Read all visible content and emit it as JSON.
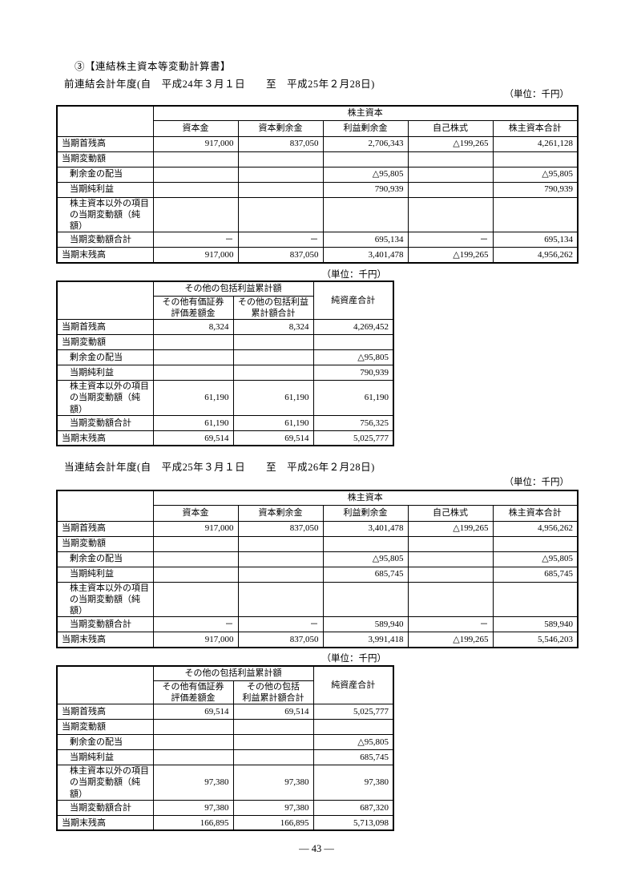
{
  "page_title": "③【連結株主資本等変動計算書】",
  "unit_label": "（単位：千円）",
  "page_number": "― 43 ―",
  "sections": [
    {
      "period_label": "前連結会計年度(自　平成24年３月１日　　至　平成25年２月28日)",
      "tables": [
        {
          "type": "shareholders_equity",
          "group_header": "株主資本",
          "columns": [
            "資本金",
            "資本剰余金",
            "利益剰余金",
            "自己株式",
            "株主資本合計"
          ],
          "rows": [
            {
              "label": "当期首残高",
              "indent": false,
              "tall": false,
              "values": [
                "917,000",
                "837,050",
                "2,706,343",
                "△199,265",
                "4,261,128"
              ]
            },
            {
              "label": "当期変動額",
              "indent": false,
              "tall": false,
              "values": [
                "",
                "",
                "",
                "",
                ""
              ]
            },
            {
              "label": "剰余金の配当",
              "indent": true,
              "tall": false,
              "values": [
                "",
                "",
                "△95,805",
                "",
                "△95,805"
              ]
            },
            {
              "label": "当期純利益",
              "indent": true,
              "tall": false,
              "values": [
                "",
                "",
                "790,939",
                "",
                "790,939"
              ]
            },
            {
              "label": "株主資本以外の項目\nの当期変動額（純額）",
              "indent": true,
              "tall": true,
              "values": [
                "",
                "",
                "",
                "",
                ""
              ]
            },
            {
              "label": "当期変動額合計",
              "indent": true,
              "tall": false,
              "values": [
                "－",
                "－",
                "695,134",
                "－",
                "695,134"
              ]
            },
            {
              "label": "当期末残高",
              "indent": false,
              "tall": false,
              "values": [
                "917,000",
                "837,050",
                "3,401,478",
                "△199,265",
                "4,956,262"
              ]
            }
          ]
        },
        {
          "type": "comprehensive_income",
          "group_header": "その他の包括利益累計額",
          "columns": [
            "その他有価証券\n評価差額金",
            "その他の包括利益\n累計額合計"
          ],
          "last_column": "純資産合計",
          "rows": [
            {
              "label": "当期首残高",
              "indent": false,
              "tall": false,
              "values": [
                "8,324",
                "8,324",
                "4,269,452"
              ]
            },
            {
              "label": "当期変動額",
              "indent": false,
              "tall": false,
              "values": [
                "",
                "",
                ""
              ]
            },
            {
              "label": "剰余金の配当",
              "indent": true,
              "tall": false,
              "values": [
                "",
                "",
                "△95,805"
              ]
            },
            {
              "label": "当期純利益",
              "indent": true,
              "tall": false,
              "values": [
                "",
                "",
                "790,939"
              ]
            },
            {
              "label": "株主資本以外の項目\nの当期変動額（純額）",
              "indent": true,
              "tall": true,
              "values": [
                "61,190",
                "61,190",
                "61,190"
              ]
            },
            {
              "label": "当期変動額合計",
              "indent": true,
              "tall": false,
              "values": [
                "61,190",
                "61,190",
                "756,325"
              ]
            },
            {
              "label": "当期末残高",
              "indent": false,
              "tall": false,
              "values": [
                "69,514",
                "69,514",
                "5,025,777"
              ]
            }
          ]
        }
      ]
    },
    {
      "period_label": "当連結会計年度(自　平成25年３月１日　　至　平成26年２月28日)",
      "tables": [
        {
          "type": "shareholders_equity",
          "group_header": "株主資本",
          "columns": [
            "資本金",
            "資本剰余金",
            "利益剰余金",
            "自己株式",
            "株主資本合計"
          ],
          "rows": [
            {
              "label": "当期首残高",
              "indent": false,
              "tall": false,
              "values": [
                "917,000",
                "837,050",
                "3,401,478",
                "△199,265",
                "4,956,262"
              ]
            },
            {
              "label": "当期変動額",
              "indent": false,
              "tall": false,
              "values": [
                "",
                "",
                "",
                "",
                ""
              ]
            },
            {
              "label": "剰余金の配当",
              "indent": true,
              "tall": false,
              "values": [
                "",
                "",
                "△95,805",
                "",
                "△95,805"
              ]
            },
            {
              "label": "当期純利益",
              "indent": true,
              "tall": false,
              "values": [
                "",
                "",
                "685,745",
                "",
                "685,745"
              ]
            },
            {
              "label": "株主資本以外の項目\nの当期変動額（純額）",
              "indent": true,
              "tall": true,
              "values": [
                "",
                "",
                "",
                "",
                ""
              ]
            },
            {
              "label": "当期変動額合計",
              "indent": true,
              "tall": false,
              "values": [
                "－",
                "－",
                "589,940",
                "－",
                "589,940"
              ]
            },
            {
              "label": "当期末残高",
              "indent": false,
              "tall": false,
              "values": [
                "917,000",
                "837,050",
                "3,991,418",
                "△199,265",
                "5,546,203"
              ]
            }
          ]
        },
        {
          "type": "comprehensive_income",
          "group_header": "その他の包括利益累計額",
          "columns": [
            "その他有価証券\n評価差額金",
            "その他の包括\n利益累計額合計"
          ],
          "last_column": "純資産合計",
          "rows": [
            {
              "label": "当期首残高",
              "indent": false,
              "tall": false,
              "values": [
                "69,514",
                "69,514",
                "5,025,777"
              ]
            },
            {
              "label": "当期変動額",
              "indent": false,
              "tall": false,
              "values": [
                "",
                "",
                ""
              ]
            },
            {
              "label": "剰余金の配当",
              "indent": true,
              "tall": false,
              "values": [
                "",
                "",
                "△95,805"
              ]
            },
            {
              "label": "当期純利益",
              "indent": true,
              "tall": false,
              "values": [
                "",
                "",
                "685,745"
              ]
            },
            {
              "label": "株主資本以外の項目\nの当期変動額（純額）",
              "indent": true,
              "tall": true,
              "values": [
                "97,380",
                "97,380",
                "97,380"
              ]
            },
            {
              "label": "当期変動額合計",
              "indent": true,
              "tall": false,
              "values": [
                "97,380",
                "97,380",
                "687,320"
              ]
            },
            {
              "label": "当期末残高",
              "indent": false,
              "tall": false,
              "values": [
                "166,895",
                "166,895",
                "5,713,098"
              ]
            }
          ]
        }
      ]
    }
  ]
}
